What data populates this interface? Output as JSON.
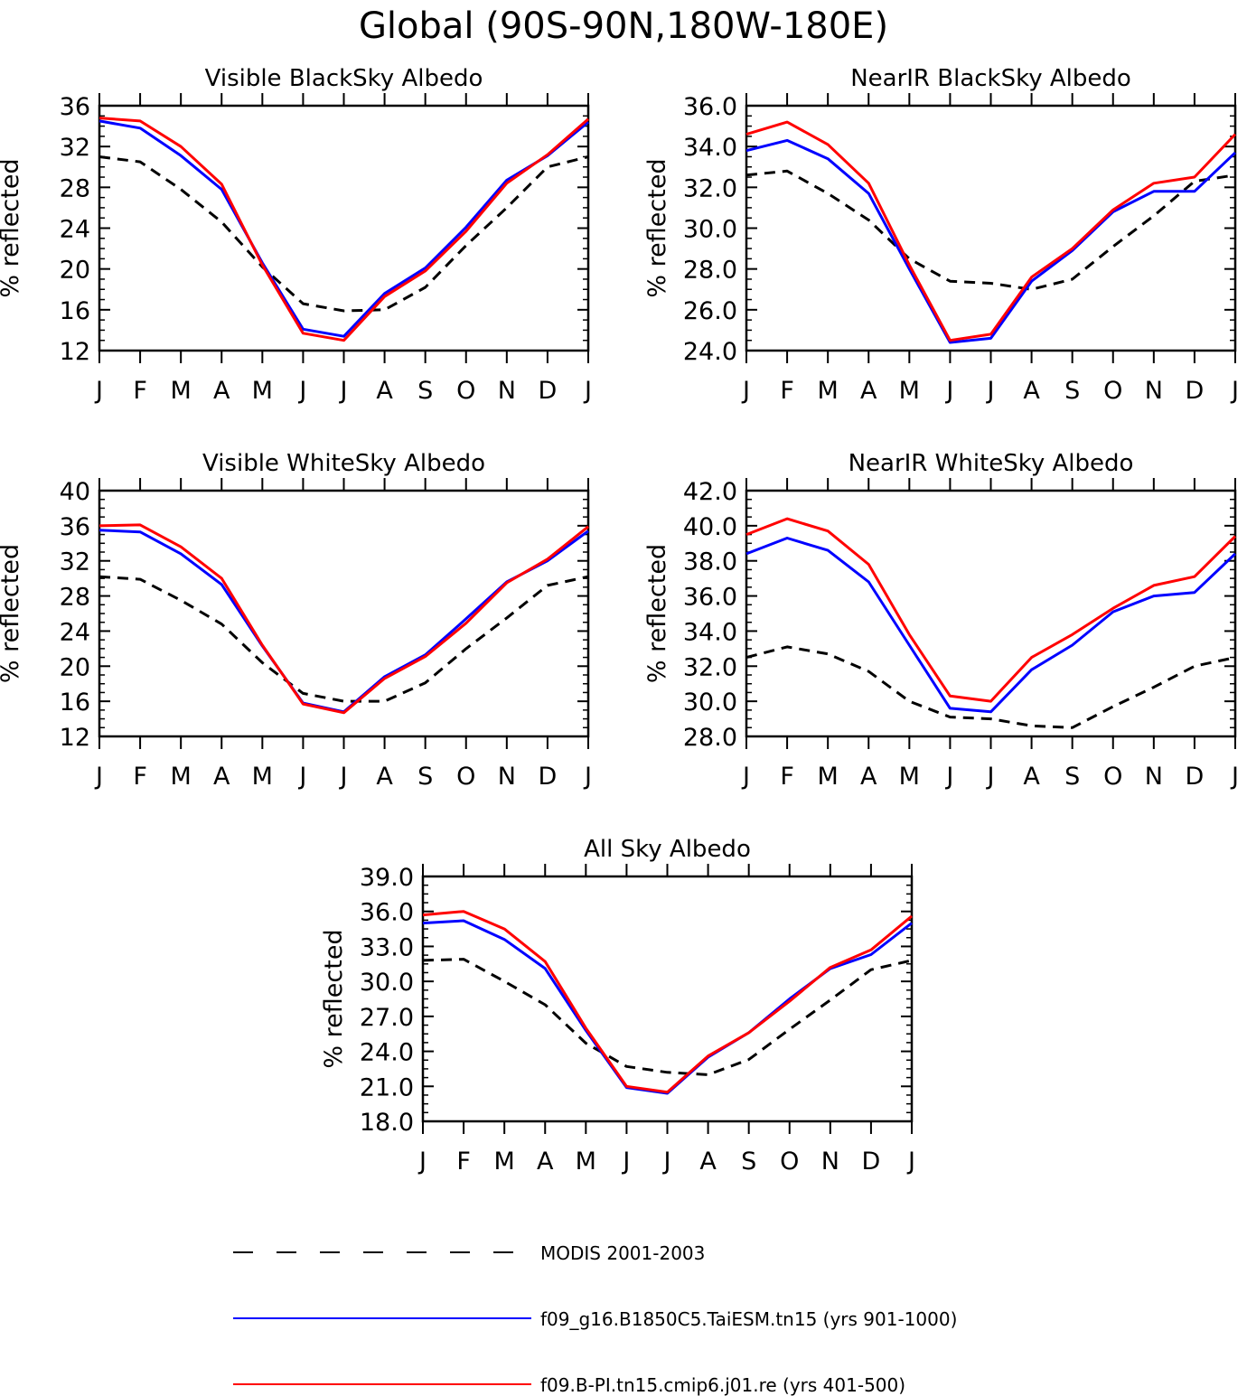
{
  "title": "Global (90S-90N,180W-180E)",
  "month_labels": [
    "J",
    "F",
    "M",
    "A",
    "M",
    "J",
    "J",
    "A",
    "S",
    "O",
    "N",
    "D",
    "J"
  ],
  "legend": [
    {
      "label": "MODIS 2001-2003",
      "color": "#000000",
      "style": "dashed"
    },
    {
      "label": "f09_g16.B1850C5.TaiESM.tn15 (yrs 901-1000)",
      "color": "#0000ff",
      "style": "solid"
    },
    {
      "label": "f09.B-PI.tn15.cmip6.j01.re (yrs 401-500)",
      "color": "#ff0000",
      "style": "solid"
    }
  ],
  "chart_data": [
    {
      "type": "line",
      "title": "Visible BlackSky Albedo",
      "ylabel": "% reflected",
      "ylim": [
        12,
        36
      ],
      "yticks": [
        "12",
        "16",
        "20",
        "24",
        "28",
        "32",
        "36"
      ],
      "categories": [
        "J",
        "F",
        "M",
        "A",
        "M",
        "J",
        "J",
        "A",
        "S",
        "O",
        "N",
        "D",
        "J"
      ],
      "series": [
        {
          "name": "MODIS 2001-2003",
          "values": [
            31.0,
            30.5,
            27.8,
            24.6,
            20.2,
            16.6,
            15.9,
            16.0,
            18.2,
            22.3,
            26.0,
            30.0,
            31.0
          ]
        },
        {
          "name": "f09_g16.B1850C5.TaiESM.tn15 (yrs 901-1000)",
          "values": [
            34.5,
            33.8,
            31.1,
            27.8,
            20.6,
            14.1,
            13.4,
            17.6,
            20.1,
            24.1,
            28.7,
            31.1,
            34.4
          ]
        },
        {
          "name": "f09.B-PI.tn15.cmip6.j01.re (yrs 401-500)",
          "values": [
            34.8,
            34.5,
            32.0,
            28.3,
            20.4,
            13.7,
            13.0,
            17.3,
            19.8,
            23.7,
            28.4,
            31.2,
            34.7
          ]
        }
      ]
    },
    {
      "type": "line",
      "title": "NearIR BlackSky Albedo",
      "ylabel": "% reflected",
      "ylim": [
        24,
        36
      ],
      "yticks": [
        "24.0",
        "26.0",
        "28.0",
        "30.0",
        "32.0",
        "34.0",
        "36.0"
      ],
      "categories": [
        "J",
        "F",
        "M",
        "A",
        "M",
        "J",
        "J",
        "A",
        "S",
        "O",
        "N",
        "D",
        "J"
      ],
      "series": [
        {
          "name": "MODIS 2001-2003",
          "values": [
            32.6,
            32.8,
            31.7,
            30.4,
            28.5,
            27.4,
            27.3,
            27.0,
            27.5,
            29.1,
            30.6,
            32.3,
            32.6
          ]
        },
        {
          "name": "f09_g16.B1850C5.TaiESM.tn15 (yrs 901-1000)",
          "values": [
            33.8,
            34.3,
            33.4,
            31.7,
            28.0,
            24.4,
            24.6,
            27.4,
            28.9,
            30.8,
            31.8,
            31.8,
            33.7
          ]
        },
        {
          "name": "f09.B-PI.tn15.cmip6.j01.re (yrs 401-500)",
          "values": [
            34.6,
            35.2,
            34.1,
            32.2,
            28.2,
            24.5,
            24.8,
            27.6,
            29.0,
            30.9,
            32.2,
            32.5,
            34.6
          ]
        }
      ]
    },
    {
      "type": "line",
      "title": "Visible WhiteSky Albedo",
      "ylabel": "% reflected",
      "ylim": [
        12,
        40
      ],
      "yticks": [
        "12",
        "16",
        "20",
        "24",
        "28",
        "32",
        "36",
        "40"
      ],
      "categories": [
        "J",
        "F",
        "M",
        "A",
        "M",
        "J",
        "J",
        "A",
        "S",
        "O",
        "N",
        "D",
        "J"
      ],
      "series": [
        {
          "name": "MODIS 2001-2003",
          "values": [
            30.2,
            29.9,
            27.5,
            24.8,
            20.4,
            16.9,
            16.0,
            16.0,
            18.1,
            22.0,
            25.5,
            29.2,
            30.2
          ]
        },
        {
          "name": "f09_g16.B1850C5.TaiESM.tn15 (yrs 901-1000)",
          "values": [
            35.5,
            35.3,
            32.8,
            29.3,
            22.3,
            15.8,
            14.8,
            18.8,
            21.3,
            25.4,
            29.6,
            32.0,
            35.4
          ]
        },
        {
          "name": "f09.B-PI.tn15.cmip6.j01.re (yrs 401-500)",
          "values": [
            36.0,
            36.1,
            33.6,
            30.0,
            22.4,
            15.7,
            14.7,
            18.6,
            21.1,
            24.9,
            29.5,
            32.2,
            35.9
          ]
        }
      ]
    },
    {
      "type": "line",
      "title": "NearIR WhiteSky Albedo",
      "ylabel": "% reflected",
      "ylim": [
        28,
        42
      ],
      "yticks": [
        "28.0",
        "30.0",
        "32.0",
        "34.0",
        "36.0",
        "38.0",
        "40.0",
        "42.0"
      ],
      "categories": [
        "J",
        "F",
        "M",
        "A",
        "M",
        "J",
        "J",
        "A",
        "S",
        "O",
        "N",
        "D",
        "J"
      ],
      "series": [
        {
          "name": "MODIS 2001-2003",
          "values": [
            32.5,
            33.1,
            32.7,
            31.7,
            30.0,
            29.1,
            29.0,
            28.6,
            28.5,
            29.7,
            30.8,
            32.0,
            32.5
          ]
        },
        {
          "name": "f09_g16.B1850C5.TaiESM.tn15 (yrs 901-1000)",
          "values": [
            38.4,
            39.3,
            38.6,
            36.8,
            33.2,
            29.6,
            29.4,
            31.8,
            33.2,
            35.1,
            36.0,
            36.2,
            38.4
          ]
        },
        {
          "name": "f09.B-PI.tn15.cmip6.j01.re (yrs 401-500)",
          "values": [
            39.5,
            40.4,
            39.7,
            37.8,
            33.8,
            30.3,
            30.0,
            32.5,
            33.8,
            35.3,
            36.6,
            37.1,
            39.4
          ]
        }
      ]
    },
    {
      "type": "line",
      "title": "All Sky Albedo",
      "ylabel": "% reflected",
      "ylim": [
        18,
        39
      ],
      "yticks": [
        "18.0",
        "21.0",
        "24.0",
        "27.0",
        "30.0",
        "33.0",
        "36.0",
        "39.0"
      ],
      "categories": [
        "J",
        "F",
        "M",
        "A",
        "M",
        "J",
        "J",
        "A",
        "S",
        "O",
        "N",
        "D",
        "J"
      ],
      "series": [
        {
          "name": "MODIS 2001-2003",
          "values": [
            31.8,
            31.9,
            30.0,
            28.0,
            24.7,
            22.7,
            22.2,
            22.0,
            23.3,
            25.9,
            28.4,
            31.0,
            31.8
          ]
        },
        {
          "name": "f09_g16.B1850C5.TaiESM.tn15 (yrs 901-1000)",
          "values": [
            35.0,
            35.2,
            33.6,
            31.1,
            25.8,
            20.9,
            20.4,
            23.5,
            25.6,
            28.5,
            31.1,
            32.3,
            35.0
          ]
        },
        {
          "name": "f09.B-PI.tn15.cmip6.j01.re (yrs 401-500)",
          "values": [
            35.7,
            36.0,
            34.5,
            31.7,
            26.0,
            21.0,
            20.5,
            23.6,
            25.6,
            28.3,
            31.2,
            32.7,
            35.6
          ]
        }
      ]
    }
  ]
}
